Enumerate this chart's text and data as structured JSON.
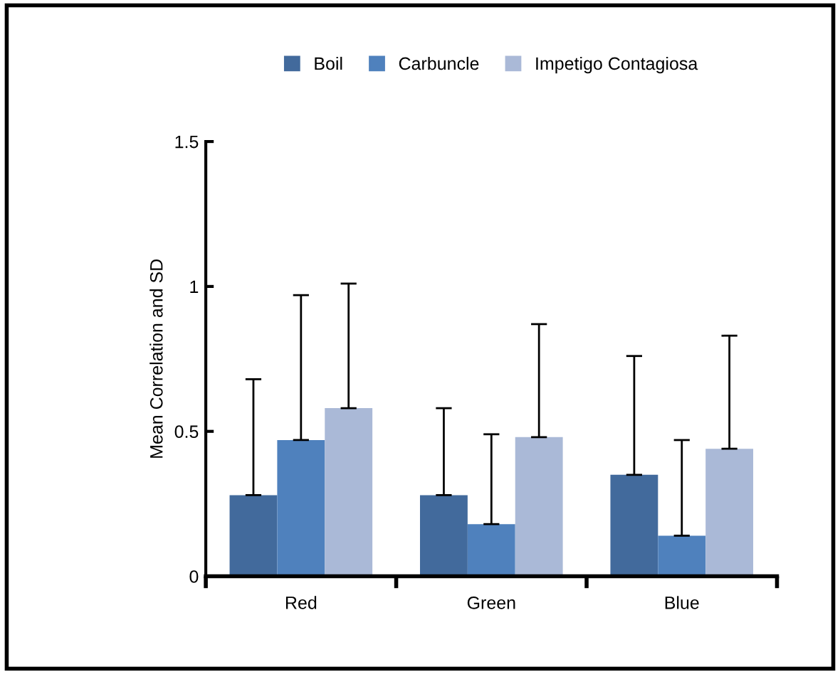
{
  "chart_data": {
    "type": "bar",
    "ylabel": "Mean Correlation and SD",
    "categories": [
      "Red",
      "Green",
      "Blue"
    ],
    "series": [
      {
        "name": "Boil",
        "color": "#426a9c",
        "values": [
          0.28,
          0.28,
          0.35
        ],
        "errors": [
          [
            0.28,
            0.68
          ],
          [
            0.28,
            0.58
          ],
          [
            0.35,
            0.76
          ]
        ]
      },
      {
        "name": "Carbuncle",
        "color": "#4f81bd",
        "values": [
          0.47,
          0.18,
          0.14
        ],
        "errors": [
          [
            0.47,
            0.97
          ],
          [
            0.18,
            0.49
          ],
          [
            0.14,
            0.47
          ]
        ]
      },
      {
        "name": "Impetigo Contagiosa",
        "color": "#aab9d7",
        "values": [
          0.58,
          0.48,
          0.44
        ],
        "errors": [
          [
            0.58,
            1.01
          ],
          [
            0.48,
            0.87
          ],
          [
            0.44,
            0.83
          ]
        ]
      }
    ],
    "ylim": [
      0,
      1.5
    ],
    "yticks": [
      0,
      0.5,
      1,
      1.5
    ],
    "grid": false,
    "legend": "top"
  }
}
